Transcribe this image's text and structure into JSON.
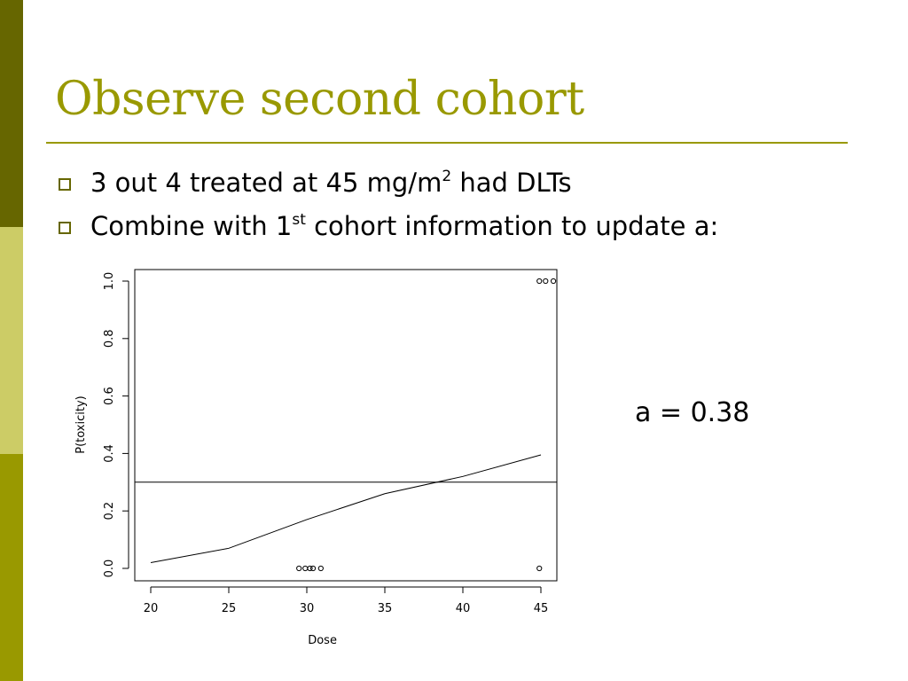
{
  "slide": {
    "title": "Observe second cohort",
    "bullet1": {
      "prefix": "3 out 4 treated at 45 mg/m",
      "sup": "2",
      "suffix": " had DLTs"
    },
    "bullet2": {
      "prefix": "Combine with 1",
      "sup": "st",
      "suffix": " cohort information to update a:"
    },
    "result": "a = 0.38"
  },
  "colors": {
    "sidebar_dark": "#666600",
    "sidebar_light": "#CCCC66",
    "sidebar_mid": "#999900",
    "title": "#999900",
    "bullet_box": "#666600"
  },
  "chart_data": {
    "type": "line",
    "xlabel": "Dose",
    "ylabel": "P(toxicity)",
    "xlim": [
      20,
      46
    ],
    "ylim": [
      0,
      1.0
    ],
    "xticks": [
      20,
      25,
      30,
      35,
      40,
      45
    ],
    "yticks": [
      "0.0",
      "0.2",
      "0.4",
      "0.6",
      "0.8",
      "1.0"
    ],
    "grid": false,
    "curve": {
      "x": [
        20,
        25,
        30,
        35,
        40,
        45
      ],
      "y": [
        0.02,
        0.07,
        0.17,
        0.26,
        0.32,
        0.395
      ]
    },
    "reference_line": {
      "y": 0.3
    },
    "observations": {
      "x": [
        29.5,
        29.9,
        30.2,
        30.4,
        30.9,
        44.9,
        44.9,
        45.3,
        45.8
      ],
      "y": [
        0,
        0,
        0,
        0,
        0,
        0,
        1,
        1,
        1
      ]
    }
  }
}
